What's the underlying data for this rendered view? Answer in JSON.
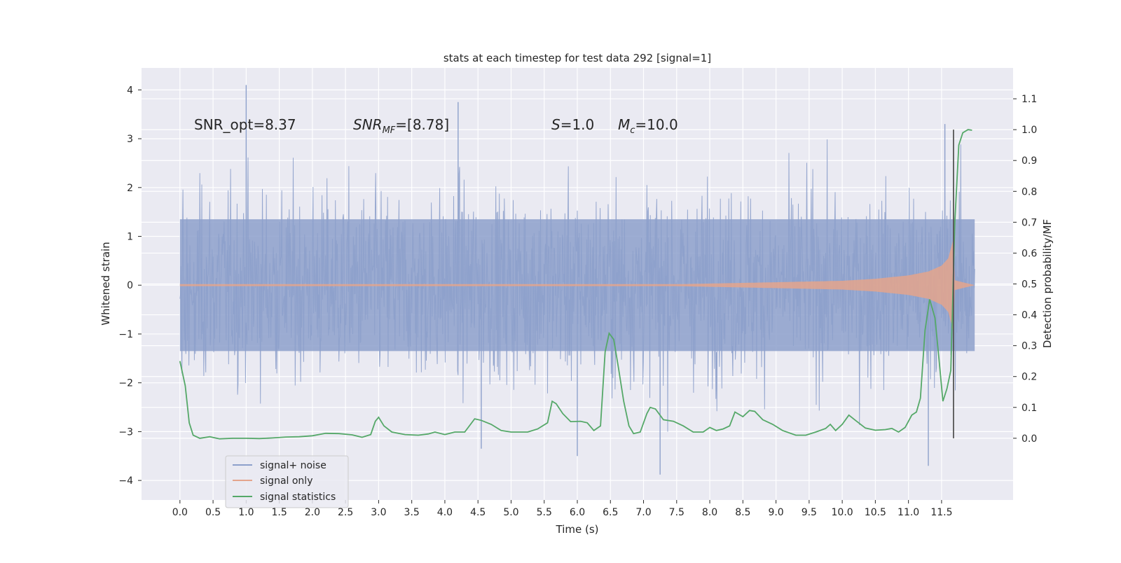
{
  "chart_data": {
    "type": "line",
    "title": "stats at each timestep for test data 292 [signal=1]",
    "xlabel": "Time (s)",
    "ylabel_left": "Whitened strain",
    "ylabel_right": "Detection probability/MF",
    "xlim": [
      -0.58,
      12.58
    ],
    "ylim_left": [
      -4.4,
      4.45
    ],
    "ylim_right": [
      -0.2,
      1.2
    ],
    "x_ticks": [
      0.0,
      0.5,
      1.0,
      1.5,
      2.0,
      2.5,
      3.0,
      3.5,
      4.0,
      4.5,
      5.0,
      5.5,
      6.0,
      6.5,
      7.0,
      7.5,
      8.0,
      8.5,
      9.0,
      9.5,
      10.0,
      10.5,
      11.0,
      11.5
    ],
    "x_tick_labels": [
      "0.0",
      "0.5",
      "1.0",
      "1.5",
      "2.0",
      "2.5",
      "3.0",
      "3.5",
      "4.0",
      "4.5",
      "5.0",
      "5.5",
      "6.0",
      "6.5",
      "7.0",
      "7.5",
      "8.0",
      "8.5",
      "9.0",
      "9.5",
      "10.0",
      "10.5",
      "11.0",
      "11.5"
    ],
    "y_left_ticks": [
      4,
      3,
      2,
      1,
      0,
      -1,
      -2,
      -3,
      -4
    ],
    "y_left_tick_labels": [
      "4",
      "3",
      "2",
      "1",
      "0",
      "−1",
      "−2",
      "−3",
      "−4"
    ],
    "y_right_ticks": [
      1.1,
      1.0,
      0.9,
      0.8,
      0.7,
      0.6,
      0.5,
      0.4,
      0.3,
      0.2,
      0.1,
      0.0
    ],
    "y_right_tick_labels": [
      "1.1",
      "1.0",
      "0.9",
      "0.8",
      "0.7",
      "0.6",
      "0.5",
      "0.4",
      "0.3",
      "0.2",
      "0.1",
      "0.0"
    ],
    "grid": true,
    "legend_position": "lower-left",
    "annotations": {
      "snr_opt": "SNR_opt=8.37",
      "snr_mf_main": "SNR",
      "snr_mf_sub": "MF",
      "snr_mf_value": "=[8.78]",
      "s_sym": "S",
      "s_value": "=1.0",
      "mc_main": "M",
      "mc_sub": "c",
      "mc_value": "=10.0"
    },
    "marker_time": 11.68,
    "series": [
      {
        "name": "signal+ noise",
        "axis": "left",
        "color": "#8da0cb",
        "kind": "noise",
        "t_start": 0.0,
        "t_end": 12.0,
        "band_abs": 1.35,
        "peak_max": 4.1,
        "peak_min": -3.88
      },
      {
        "name": "signal only",
        "axis": "left",
        "color": "#e4a58c",
        "kind": "chirp",
        "t_start": 0.0,
        "t_end": 12.0,
        "envelope": [
          [
            0.0,
            0.02
          ],
          [
            7.5,
            0.02
          ],
          [
            9.0,
            0.06
          ],
          [
            10.0,
            0.09
          ],
          [
            10.5,
            0.13
          ],
          [
            11.0,
            0.2
          ],
          [
            11.3,
            0.28
          ],
          [
            11.5,
            0.4
          ],
          [
            11.6,
            0.55
          ],
          [
            11.65,
            0.8
          ],
          [
            11.68,
            0.95
          ],
          [
            11.7,
            0.1
          ],
          [
            12.0,
            0.0
          ]
        ]
      },
      {
        "name": "signal statistics",
        "axis": "right",
        "color": "#55a868",
        "kind": "line",
        "points": [
          [
            0.0,
            0.25
          ],
          [
            0.08,
            0.17
          ],
          [
            0.14,
            0.05
          ],
          [
            0.2,
            0.01
          ],
          [
            0.3,
            0.0
          ],
          [
            0.45,
            0.005
          ],
          [
            0.6,
            -0.002
          ],
          [
            0.8,
            0.0
          ],
          [
            1.0,
            0.0
          ],
          [
            1.2,
            -0.001
          ],
          [
            1.4,
            0.001
          ],
          [
            1.6,
            0.004
          ],
          [
            1.8,
            0.005
          ],
          [
            2.0,
            0.008
          ],
          [
            2.2,
            0.016
          ],
          [
            2.4,
            0.015
          ],
          [
            2.6,
            0.011
          ],
          [
            2.75,
            0.003
          ],
          [
            2.88,
            0.012
          ],
          [
            2.95,
            0.055
          ],
          [
            3.0,
            0.068
          ],
          [
            3.08,
            0.04
          ],
          [
            3.2,
            0.02
          ],
          [
            3.4,
            0.012
          ],
          [
            3.6,
            0.01
          ],
          [
            3.75,
            0.014
          ],
          [
            3.85,
            0.02
          ],
          [
            4.0,
            0.012
          ],
          [
            4.15,
            0.02
          ],
          [
            4.3,
            0.02
          ],
          [
            4.45,
            0.063
          ],
          [
            4.55,
            0.058
          ],
          [
            4.7,
            0.045
          ],
          [
            4.85,
            0.025
          ],
          [
            5.0,
            0.02
          ],
          [
            5.1,
            0.02
          ],
          [
            5.25,
            0.02
          ],
          [
            5.4,
            0.03
          ],
          [
            5.55,
            0.05
          ],
          [
            5.62,
            0.12
          ],
          [
            5.68,
            0.112
          ],
          [
            5.78,
            0.08
          ],
          [
            5.9,
            0.054
          ],
          [
            6.05,
            0.055
          ],
          [
            6.15,
            0.05
          ],
          [
            6.25,
            0.025
          ],
          [
            6.35,
            0.04
          ],
          [
            6.42,
            0.28
          ],
          [
            6.48,
            0.34
          ],
          [
            6.55,
            0.32
          ],
          [
            6.62,
            0.23
          ],
          [
            6.7,
            0.12
          ],
          [
            6.78,
            0.04
          ],
          [
            6.85,
            0.015
          ],
          [
            6.95,
            0.02
          ],
          [
            7.05,
            0.08
          ],
          [
            7.1,
            0.1
          ],
          [
            7.18,
            0.095
          ],
          [
            7.3,
            0.06
          ],
          [
            7.45,
            0.055
          ],
          [
            7.6,
            0.04
          ],
          [
            7.75,
            0.02
          ],
          [
            7.9,
            0.02
          ],
          [
            8.0,
            0.035
          ],
          [
            8.1,
            0.025
          ],
          [
            8.2,
            0.03
          ],
          [
            8.3,
            0.04
          ],
          [
            8.38,
            0.085
          ],
          [
            8.5,
            0.07
          ],
          [
            8.6,
            0.09
          ],
          [
            8.68,
            0.087
          ],
          [
            8.8,
            0.06
          ],
          [
            8.95,
            0.045
          ],
          [
            9.1,
            0.025
          ],
          [
            9.3,
            0.01
          ],
          [
            9.45,
            0.01
          ],
          [
            9.6,
            0.02
          ],
          [
            9.75,
            0.032
          ],
          [
            9.82,
            0.045
          ],
          [
            9.9,
            0.025
          ],
          [
            10.0,
            0.045
          ],
          [
            10.1,
            0.075
          ],
          [
            10.2,
            0.058
          ],
          [
            10.35,
            0.033
          ],
          [
            10.5,
            0.026
          ],
          [
            10.65,
            0.028
          ],
          [
            10.75,
            0.032
          ],
          [
            10.85,
            0.02
          ],
          [
            10.95,
            0.035
          ],
          [
            11.05,
            0.075
          ],
          [
            11.12,
            0.085
          ],
          [
            11.18,
            0.13
          ],
          [
            11.25,
            0.35
          ],
          [
            11.32,
            0.45
          ],
          [
            11.4,
            0.39
          ],
          [
            11.46,
            0.26
          ],
          [
            11.52,
            0.12
          ],
          [
            11.58,
            0.16
          ],
          [
            11.64,
            0.22
          ],
          [
            11.7,
            0.7
          ],
          [
            11.76,
            0.95
          ],
          [
            11.82,
            0.99
          ],
          [
            11.9,
            1.0
          ],
          [
            11.96,
            0.998
          ]
        ]
      }
    ]
  }
}
